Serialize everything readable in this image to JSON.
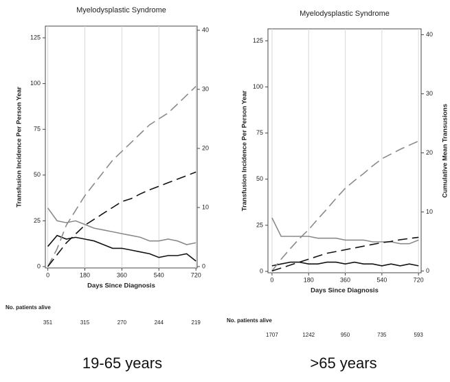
{
  "chart_data": [
    {
      "type": "line",
      "title": "Myelodysplastic Syndrome",
      "ylabel": "Transfusion Incidence Per Person Year",
      "xlabel": "Days Since Diagnosis",
      "x": [
        0,
        45,
        90,
        135,
        180,
        225,
        270,
        315,
        360,
        405,
        450,
        495,
        540,
        585,
        630,
        675,
        720
      ],
      "xlim": [
        -12,
        726
      ],
      "xticks": [
        0,
        180,
        360,
        540,
        720
      ],
      "ylim": [
        -0.75,
        131.4
      ],
      "yticks": [
        0,
        25,
        50,
        75,
        100,
        125
      ],
      "y2lim": [
        -0.23,
        40.7
      ],
      "y2ticks": [
        0,
        10,
        20,
        30,
        40
      ],
      "grid_x": true,
      "series": [
        {
          "color": "#8a8a8a",
          "dashed": false,
          "axis": "y",
          "values": [
            32,
            25,
            24,
            25,
            23,
            21,
            20,
            19,
            18,
            17,
            16,
            14,
            14,
            15,
            14,
            12,
            13
          ]
        },
        {
          "color": "#111111",
          "dashed": false,
          "axis": "y",
          "values": [
            11,
            17,
            15,
            16,
            15,
            14,
            12,
            10,
            10,
            9,
            8,
            7,
            5,
            6,
            6,
            7,
            3
          ]
        },
        {
          "color": "#8a8a8a",
          "dashed": true,
          "axis": "y2",
          "values": [
            0,
            3,
            7,
            9.5,
            12,
            14,
            16,
            18,
            19.5,
            21,
            22.5,
            24,
            25,
            26,
            27.5,
            29,
            30.5
          ]
        },
        {
          "color": "#111111",
          "dashed": true,
          "axis": "y2",
          "values": [
            0,
            2,
            4,
            5.5,
            7,
            8,
            9,
            10,
            11,
            11.5,
            12.3,
            13,
            13.6,
            14.2,
            14.8,
            15.4,
            16
          ]
        }
      ],
      "at_risk_label": "No. patients alive",
      "at_risk": [
        351,
        315,
        270,
        244,
        219
      ],
      "caption": "19-65 years"
    },
    {
      "type": "line",
      "title": "Myelodysplastic Syndrome",
      "ylabel": "Transfusion Incidence Per Person Year",
      "y2label": "Cumulative Mean Transusions",
      "xlabel": "Days Since Diagnosis",
      "x": [
        0,
        45,
        90,
        135,
        180,
        225,
        270,
        315,
        360,
        405,
        450,
        495,
        540,
        585,
        630,
        675,
        720
      ],
      "xlim": [
        -20,
        733
      ],
      "xticks": [
        0,
        180,
        360,
        540,
        720
      ],
      "ylim": [
        -0.75,
        131.5
      ],
      "yticks": [
        0,
        25,
        50,
        75,
        100,
        125
      ],
      "y2lim": [
        -0.3,
        41
      ],
      "y2ticks": [
        0,
        10,
        20,
        30,
        40
      ],
      "grid_x": true,
      "series": [
        {
          "color": "#8a8a8a",
          "dashed": false,
          "axis": "y",
          "values": [
            29,
            19,
            19,
            19,
            19,
            18,
            18,
            18,
            17,
            17,
            17,
            16,
            16,
            16,
            15,
            15,
            17
          ]
        },
        {
          "color": "#111111",
          "dashed": false,
          "axis": "y",
          "values": [
            3,
            4,
            5,
            5,
            4,
            4,
            5,
            5,
            4,
            5,
            4,
            4,
            3,
            4,
            3,
            4,
            3
          ]
        },
        {
          "color": "#8a8a8a",
          "dashed": true,
          "axis": "y2",
          "values": [
            0,
            2,
            3.8,
            5.5,
            7,
            8.8,
            10.5,
            12.3,
            14,
            15.3,
            16.5,
            17.8,
            19,
            19.8,
            20.6,
            21.3,
            22
          ]
        },
        {
          "color": "#111111",
          "dashed": true,
          "axis": "y2",
          "values": [
            0,
            0.5,
            1,
            1.5,
            2,
            2.5,
            3,
            3.3,
            3.6,
            3.9,
            4.2,
            4.5,
            4.8,
            5,
            5.3,
            5.5,
            5.7
          ]
        }
      ],
      "at_risk_label": "No. patients alive",
      "at_risk": [
        1707,
        1242,
        950,
        735,
        593
      ],
      "caption": ">65 years"
    }
  ]
}
